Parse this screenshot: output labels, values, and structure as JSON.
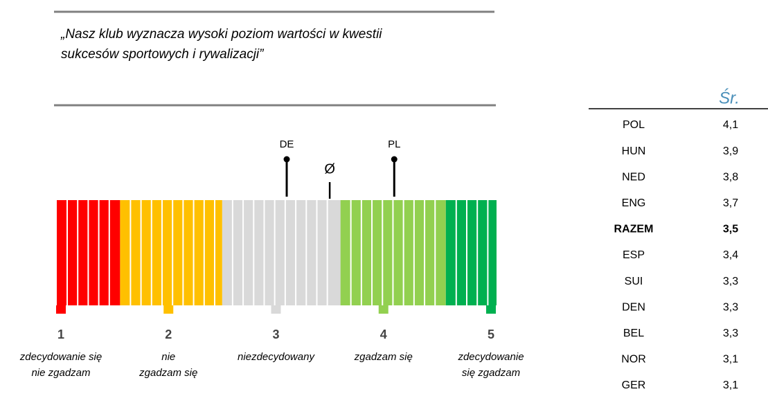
{
  "chart_data": {
    "type": "scale",
    "title": [
      "„Nasz klub wyznacza wysoki poziom wartości w kwestii",
      "sukcesów sportowych i rywalizacji”"
    ],
    "xlim": [
      1,
      5
    ],
    "xticks": [
      1,
      2,
      3,
      4,
      5
    ],
    "tick_descriptions": [
      [
        "zdecydowanie się",
        "nie zgadzam"
      ],
      [
        "nie",
        "zgadzam się"
      ],
      [
        "niezdecydowany"
      ],
      [
        "zgadzam się"
      ],
      [
        "zdecydowanie",
        "się zgadzam"
      ]
    ],
    "zones": [
      {
        "from": 1,
        "to": 1.55,
        "color": "#ff0000"
      },
      {
        "from": 1.55,
        "to": 2.5,
        "color": "#ffc000"
      },
      {
        "from": 2.5,
        "to": 3.6,
        "color": "#d9d9d9"
      },
      {
        "from": 3.6,
        "to": 4.58,
        "color": "#92d050"
      },
      {
        "from": 4.58,
        "to": 5,
        "color": "#00b050"
      }
    ],
    "markers": [
      {
        "label": "DE",
        "value": 3.1,
        "dot": true
      },
      {
        "label": "PL",
        "value": 4.1,
        "dot": true
      },
      {
        "label": "Ø",
        "value": 3.5,
        "dot": false
      }
    ]
  },
  "table": {
    "header": "Śr.",
    "bold_row": 4,
    "rows": [
      [
        "POL",
        "4,1"
      ],
      [
        "HUN",
        "3,9"
      ],
      [
        "NED",
        "3,8"
      ],
      [
        "ENG",
        "3,7"
      ],
      [
        "RAZEM",
        "3,5"
      ],
      [
        "ESP",
        "3,4"
      ],
      [
        "SUI",
        "3,3"
      ],
      [
        "DEN",
        "3,3"
      ],
      [
        "BEL",
        "3,3"
      ],
      [
        "NOR",
        "3,1"
      ],
      [
        "GER",
        "3,1"
      ]
    ]
  }
}
